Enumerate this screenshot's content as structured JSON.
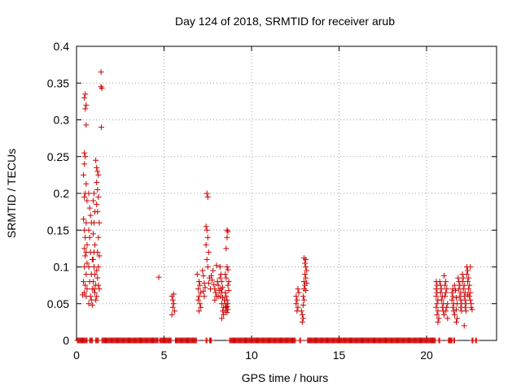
{
  "chart_data": {
    "type": "scatter",
    "title": "Day 124 of 2018, SRMTID for receiver arub",
    "xlabel": "GPS time / hours",
    "ylabel": "SRMTID / TECUs",
    "xlim": [
      0,
      24
    ],
    "ylim": [
      0,
      0.4
    ],
    "xticks": [
      0,
      5,
      10,
      15,
      20
    ],
    "yticks": [
      0,
      0.05,
      0.1,
      0.15,
      0.2,
      0.25,
      0.3,
      0.35,
      0.4
    ],
    "grid": true,
    "marker": "+",
    "series_color": "#cc0000",
    "series": [
      {
        "name": "SRMTID",
        "points": [
          [
            0.45,
            0.33
          ],
          [
            0.5,
            0.335
          ],
          [
            0.55,
            0.32
          ],
          [
            0.5,
            0.315
          ],
          [
            0.55,
            0.293
          ],
          [
            0.45,
            0.255
          ],
          [
            0.5,
            0.25
          ],
          [
            0.45,
            0.24
          ],
          [
            0.4,
            0.225
          ],
          [
            0.55,
            0.213
          ],
          [
            0.45,
            0.195
          ],
          [
            0.5,
            0.2
          ],
          [
            0.6,
            0.19
          ],
          [
            0.4,
            0.165
          ],
          [
            0.55,
            0.16
          ],
          [
            0.45,
            0.15
          ],
          [
            0.5,
            0.14
          ],
          [
            0.6,
            0.13
          ],
          [
            0.45,
            0.125
          ],
          [
            0.55,
            0.12
          ],
          [
            0.5,
            0.115
          ],
          [
            0.6,
            0.105
          ],
          [
            0.45,
            0.1
          ],
          [
            0.55,
            0.09
          ],
          [
            0.4,
            0.08
          ],
          [
            0.5,
            0.075
          ],
          [
            0.6,
            0.07
          ],
          [
            0.45,
            0.065
          ],
          [
            0.55,
            0.06
          ],
          [
            0.35,
            0.062
          ],
          [
            0.7,
            0.2
          ],
          [
            0.75,
            0.18
          ],
          [
            0.8,
            0.17
          ],
          [
            0.85,
            0.16
          ],
          [
            0.7,
            0.15
          ],
          [
            0.75,
            0.14
          ],
          [
            0.8,
            0.12
          ],
          [
            0.9,
            0.11
          ],
          [
            0.7,
            0.1
          ],
          [
            0.85,
            0.09
          ],
          [
            0.75,
            0.08
          ],
          [
            0.9,
            0.07
          ],
          [
            0.8,
            0.06
          ],
          [
            0.85,
            0.055
          ],
          [
            0.7,
            0.05
          ],
          [
            0.9,
            0.048
          ],
          [
            0.95,
            0.19
          ],
          [
            1.0,
            0.2
          ],
          [
            1.05,
            0.175
          ],
          [
            1.0,
            0.16
          ],
          [
            0.95,
            0.145
          ],
          [
            1.05,
            0.13
          ],
          [
            1.0,
            0.12
          ],
          [
            0.95,
            0.11
          ],
          [
            1.0,
            0.1
          ],
          [
            1.05,
            0.09
          ],
          [
            0.95,
            0.08
          ],
          [
            1.1,
            0.075
          ],
          [
            1.0,
            0.07
          ],
          [
            1.05,
            0.065
          ],
          [
            1.15,
            0.06
          ],
          [
            1.1,
            0.055
          ],
          [
            1.1,
            0.245
          ],
          [
            1.15,
            0.235
          ],
          [
            1.2,
            0.23
          ],
          [
            1.25,
            0.225
          ],
          [
            1.15,
            0.215
          ],
          [
            1.2,
            0.205
          ],
          [
            1.25,
            0.195
          ],
          [
            1.15,
            0.185
          ],
          [
            1.2,
            0.175
          ],
          [
            1.3,
            0.16
          ],
          [
            1.25,
            0.14
          ],
          [
            1.2,
            0.12
          ],
          [
            1.3,
            0.115
          ],
          [
            1.25,
            0.1
          ],
          [
            1.15,
            0.095
          ],
          [
            1.2,
            0.085
          ],
          [
            1.25,
            0.075
          ],
          [
            1.3,
            0.07
          ],
          [
            1.4,
            0.365
          ],
          [
            1.4,
            0.345
          ],
          [
            1.45,
            0.343
          ],
          [
            1.42,
            0.29
          ],
          [
            4.7,
            0.086
          ],
          [
            5.45,
            0.06
          ],
          [
            5.5,
            0.055
          ],
          [
            5.55,
            0.05
          ],
          [
            5.5,
            0.045
          ],
          [
            5.6,
            0.04
          ],
          [
            5.45,
            0.035
          ],
          [
            5.55,
            0.063
          ],
          [
            6.9,
            0.09
          ],
          [
            7.0,
            0.08
          ],
          [
            7.05,
            0.075
          ],
          [
            6.95,
            0.07
          ],
          [
            7.1,
            0.065
          ],
          [
            7.0,
            0.06
          ],
          [
            6.95,
            0.055
          ],
          [
            7.05,
            0.05
          ],
          [
            7.1,
            0.045
          ],
          [
            7.0,
            0.04
          ],
          [
            7.2,
            0.095
          ],
          [
            7.25,
            0.088
          ],
          [
            7.3,
            0.078
          ],
          [
            7.35,
            0.072
          ],
          [
            7.25,
            0.067
          ],
          [
            7.3,
            0.06
          ],
          [
            7.45,
            0.2
          ],
          [
            7.5,
            0.195
          ],
          [
            7.4,
            0.155
          ],
          [
            7.45,
            0.15
          ],
          [
            7.5,
            0.14
          ],
          [
            7.4,
            0.13
          ],
          [
            7.55,
            0.12
          ],
          [
            7.45,
            0.11
          ],
          [
            7.5,
            0.1
          ],
          [
            7.6,
            0.085
          ],
          [
            7.55,
            0.078
          ],
          [
            7.65,
            0.07
          ],
          [
            7.7,
            0.088
          ],
          [
            7.8,
            0.095
          ],
          [
            7.75,
            0.082
          ],
          [
            7.85,
            0.076
          ],
          [
            7.9,
            0.07
          ],
          [
            7.95,
            0.065
          ],
          [
            8.0,
            0.06
          ],
          [
            7.9,
            0.055
          ],
          [
            8.05,
            0.08
          ],
          [
            8.1,
            0.075
          ],
          [
            8.15,
            0.068
          ],
          [
            8.1,
            0.06
          ],
          [
            8.0,
            0.102
          ],
          [
            8.2,
            0.1
          ],
          [
            8.25,
            0.09
          ],
          [
            8.2,
            0.085
          ],
          [
            8.3,
            0.08
          ],
          [
            8.25,
            0.07
          ],
          [
            8.3,
            0.065
          ],
          [
            8.2,
            0.06
          ],
          [
            8.35,
            0.058
          ],
          [
            8.3,
            0.05
          ],
          [
            8.4,
            0.045
          ],
          [
            8.35,
            0.04
          ],
          [
            8.4,
            0.035
          ],
          [
            8.3,
            0.03
          ],
          [
            8.45,
            0.055
          ],
          [
            8.5,
            0.05
          ],
          [
            8.55,
            0.045
          ],
          [
            8.5,
            0.04
          ],
          [
            8.6,
            0.038
          ],
          [
            8.55,
            0.06
          ],
          [
            8.6,
            0.055
          ],
          [
            8.65,
            0.05
          ],
          [
            8.6,
            0.046
          ],
          [
            8.65,
            0.042
          ],
          [
            8.6,
            0.15
          ],
          [
            8.65,
            0.148
          ],
          [
            8.6,
            0.14
          ],
          [
            8.55,
            0.125
          ],
          [
            8.6,
            0.1
          ],
          [
            8.65,
            0.096
          ],
          [
            8.5,
            0.09
          ],
          [
            8.55,
            0.085
          ],
          [
            8.7,
            0.08
          ],
          [
            8.65,
            0.075
          ],
          [
            8.7,
            0.068
          ],
          [
            8.5,
            0.065
          ],
          [
            8.35,
            0.072
          ],
          [
            12.55,
            0.06
          ],
          [
            12.6,
            0.055
          ],
          [
            12.55,
            0.05
          ],
          [
            12.65,
            0.045
          ],
          [
            12.6,
            0.04
          ],
          [
            12.7,
            0.065
          ],
          [
            12.65,
            0.07
          ],
          [
            12.85,
            0.04
          ],
          [
            12.9,
            0.035
          ],
          [
            12.95,
            0.03
          ],
          [
            12.9,
            0.025
          ],
          [
            12.95,
            0.048
          ],
          [
            13.0,
            0.055
          ],
          [
            12.95,
            0.06
          ],
          [
            13.0,
            0.07
          ],
          [
            13.05,
            0.075
          ],
          [
            13.0,
            0.08
          ],
          [
            13.05,
            0.09
          ],
          [
            13.1,
            0.1
          ],
          [
            13.05,
            0.105
          ],
          [
            13.1,
            0.11
          ],
          [
            13.0,
            0.112
          ],
          [
            13.15,
            0.095
          ],
          [
            13.1,
            0.085
          ],
          [
            13.15,
            0.078
          ],
          [
            13.1,
            0.068
          ],
          [
            20.55,
            0.08
          ],
          [
            20.6,
            0.075
          ],
          [
            20.55,
            0.07
          ],
          [
            20.6,
            0.065
          ],
          [
            20.55,
            0.06
          ],
          [
            20.65,
            0.055
          ],
          [
            20.6,
            0.05
          ],
          [
            20.55,
            0.045
          ],
          [
            20.65,
            0.04
          ],
          [
            20.6,
            0.035
          ],
          [
            20.7,
            0.03
          ],
          [
            20.65,
            0.025
          ],
          [
            20.75,
            0.08
          ],
          [
            20.8,
            0.075
          ],
          [
            20.85,
            0.07
          ],
          [
            20.8,
            0.065
          ],
          [
            20.9,
            0.06
          ],
          [
            20.85,
            0.055
          ],
          [
            20.95,
            0.05
          ],
          [
            20.9,
            0.045
          ],
          [
            20.95,
            0.04
          ],
          [
            21.0,
            0.035
          ],
          [
            21.0,
            0.088
          ],
          [
            21.05,
            0.075
          ],
          [
            21.1,
            0.08
          ],
          [
            21.15,
            0.07
          ],
          [
            21.1,
            0.065
          ],
          [
            21.05,
            0.06
          ],
          [
            21.2,
            0.05
          ],
          [
            21.15,
            0.045
          ],
          [
            21.1,
            0.04
          ],
          [
            21.2,
            0.03
          ],
          [
            21.45,
            0.065
          ],
          [
            21.5,
            0.06
          ],
          [
            21.45,
            0.055
          ],
          [
            21.55,
            0.05
          ],
          [
            21.5,
            0.045
          ],
          [
            21.55,
            0.04
          ],
          [
            21.6,
            0.035
          ],
          [
            21.5,
            0.07
          ],
          [
            21.6,
            0.075
          ],
          [
            21.65,
            0.068
          ],
          [
            21.7,
            0.058
          ],
          [
            21.75,
            0.05
          ],
          [
            21.7,
            0.042
          ],
          [
            21.75,
            0.03
          ],
          [
            21.7,
            0.025
          ],
          [
            21.8,
            0.085
          ],
          [
            21.85,
            0.08
          ],
          [
            21.9,
            0.075
          ],
          [
            21.85,
            0.07
          ],
          [
            21.95,
            0.065
          ],
          [
            21.9,
            0.06
          ],
          [
            21.95,
            0.055
          ],
          [
            22.0,
            0.05
          ],
          [
            21.95,
            0.045
          ],
          [
            22.0,
            0.04
          ],
          [
            22.05,
            0.09
          ],
          [
            22.1,
            0.085
          ],
          [
            22.05,
            0.08
          ],
          [
            22.15,
            0.075
          ],
          [
            22.1,
            0.07
          ],
          [
            22.2,
            0.065
          ],
          [
            22.15,
            0.06
          ],
          [
            22.2,
            0.055
          ],
          [
            22.25,
            0.05
          ],
          [
            22.2,
            0.045
          ],
          [
            22.25,
            0.04
          ],
          [
            22.3,
            0.1
          ],
          [
            22.35,
            0.095
          ],
          [
            22.3,
            0.09
          ],
          [
            22.4,
            0.085
          ],
          [
            22.35,
            0.08
          ],
          [
            22.45,
            0.075
          ],
          [
            22.4,
            0.07
          ],
          [
            22.5,
            0.065
          ],
          [
            22.45,
            0.06
          ],
          [
            22.5,
            0.055
          ],
          [
            22.55,
            0.05
          ],
          [
            22.5,
            0.1
          ],
          [
            22.55,
            0.045
          ],
          [
            22.6,
            0.042
          ],
          [
            22.35,
            0.062
          ],
          [
            22.15,
            0.02
          ]
        ],
        "zero_runs": [
          [
            0.05,
            0.6
          ],
          [
            0.75,
            0.9
          ],
          [
            1.1,
            1.25
          ],
          [
            1.45,
            4.65
          ],
          [
            4.75,
            5.4
          ],
          [
            5.65,
            6.85
          ],
          [
            7.4,
            7.45
          ],
          [
            7.6,
            7.7
          ],
          [
            8.75,
            12.5
          ],
          [
            12.75,
            12.8
          ],
          [
            13.2,
            20.5
          ],
          [
            20.7,
            20.75
          ],
          [
            21.25,
            21.45
          ],
          [
            21.55,
            21.6
          ],
          [
            22.6,
            22.65
          ],
          [
            22.8,
            22.85
          ]
        ]
      }
    ]
  }
}
